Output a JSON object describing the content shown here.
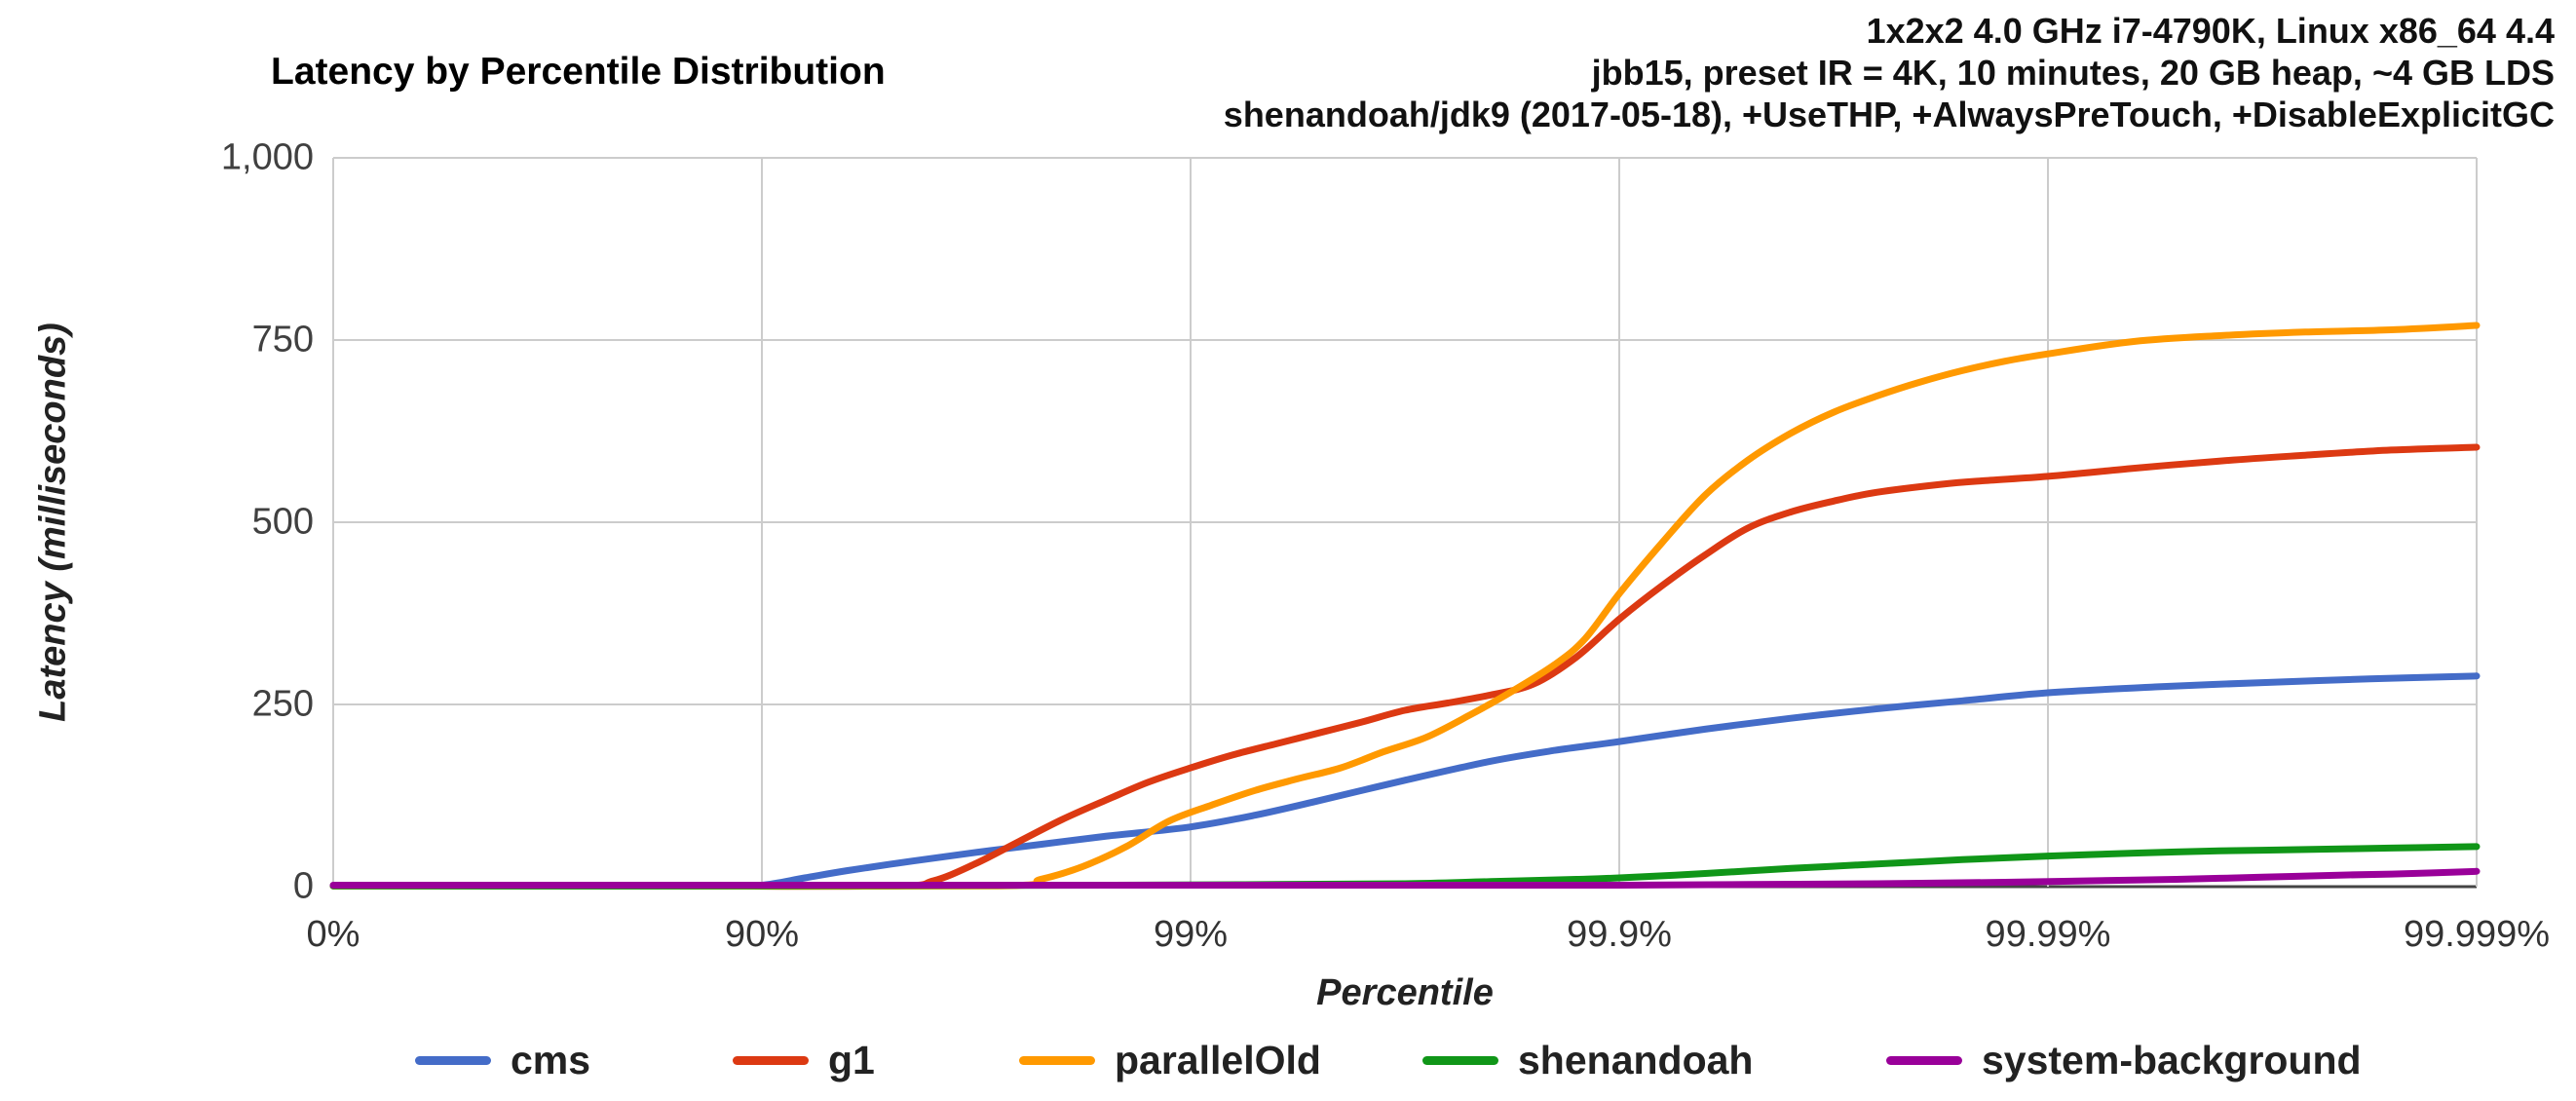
{
  "header": {
    "line1": "1x2x2 4.0 GHz i7-4790K, Linux x86_64 4.4",
    "line2": "jbb15, preset IR = 4K, 10 minutes, 20 GB heap, ~4 GB LDS",
    "line3": "shenandoah/jdk9 (2017-05-18), +UseTHP, +AlwaysPreTouch, +DisableExplicitGC"
  },
  "chart_data": {
    "type": "line",
    "title": "Latency by Percentile Distribution",
    "xlabel": "Percentile",
    "ylabel": "Latency (milliseconds)",
    "x_scale": "logarithmic percentile (equal spacing per decade of 1-p)",
    "x_ticks": [
      "0%",
      "90%",
      "99%",
      "99.9%",
      "99.99%",
      "99.999%"
    ],
    "y_ticks": [
      "0",
      "250",
      "500",
      "750",
      "1,000"
    ],
    "ylim": [
      0,
      1000
    ],
    "grid": true,
    "legend_position": "bottom",
    "colors": {
      "gridline": "#cccccc",
      "axis_baseline": "#444444",
      "background": "#ffffff"
    },
    "series": [
      {
        "name": "cms",
        "color": "#446CC8",
        "points_decade_ms": [
          [
            0,
            1
          ],
          [
            0.5,
            1
          ],
          [
            0.9,
            1
          ],
          [
            1.0,
            2
          ],
          [
            1.1,
            12
          ],
          [
            1.2,
            22
          ],
          [
            1.35,
            35
          ],
          [
            1.5,
            47
          ],
          [
            1.65,
            58
          ],
          [
            1.8,
            69
          ],
          [
            2.0,
            82
          ],
          [
            2.15,
            98
          ],
          [
            2.3,
            118
          ],
          [
            2.5,
            146
          ],
          [
            2.7,
            172
          ],
          [
            2.85,
            187
          ],
          [
            3.0,
            199
          ],
          [
            3.2,
            216
          ],
          [
            3.4,
            231
          ],
          [
            3.6,
            244
          ],
          [
            3.8,
            255
          ],
          [
            4.0,
            266
          ],
          [
            4.25,
            274
          ],
          [
            4.5,
            280
          ],
          [
            4.75,
            285
          ],
          [
            5.0,
            289
          ]
        ]
      },
      {
        "name": "g1",
        "color": "#DC3912",
        "points_decade_ms": [
          [
            0,
            1
          ],
          [
            0.75,
            1
          ],
          [
            1.3,
            1
          ],
          [
            1.4,
            8
          ],
          [
            1.5,
            32
          ],
          [
            1.6,
            62
          ],
          [
            1.7,
            92
          ],
          [
            1.8,
            118
          ],
          [
            1.9,
            143
          ],
          [
            2.0,
            163
          ],
          [
            2.1,
            181
          ],
          [
            2.2,
            196
          ],
          [
            2.3,
            211
          ],
          [
            2.4,
            226
          ],
          [
            2.5,
            242
          ],
          [
            2.6,
            252
          ],
          [
            2.7,
            263
          ],
          [
            2.8,
            278
          ],
          [
            2.9,
            315
          ],
          [
            3.0,
            367
          ],
          [
            3.1,
            413
          ],
          [
            3.2,
            455
          ],
          [
            3.3,
            492
          ],
          [
            3.4,
            514
          ],
          [
            3.5,
            529
          ],
          [
            3.6,
            541
          ],
          [
            3.75,
            552
          ],
          [
            3.85,
            557
          ],
          [
            4.0,
            563
          ],
          [
            4.2,
            574
          ],
          [
            4.4,
            584
          ],
          [
            4.6,
            592
          ],
          [
            4.8,
            599
          ],
          [
            5.0,
            603
          ]
        ]
      },
      {
        "name": "parallelOld",
        "color": "#FF9900",
        "points_decade_ms": [
          [
            0,
            1
          ],
          [
            0.75,
            1
          ],
          [
            1.55,
            1
          ],
          [
            1.65,
            10
          ],
          [
            1.75,
            28
          ],
          [
            1.85,
            55
          ],
          [
            1.95,
            90
          ],
          [
            2.05,
            112
          ],
          [
            2.15,
            132
          ],
          [
            2.25,
            148
          ],
          [
            2.35,
            163
          ],
          [
            2.45,
            185
          ],
          [
            2.55,
            205
          ],
          [
            2.65,
            235
          ],
          [
            2.75,
            268
          ],
          [
            2.85,
            305
          ],
          [
            2.92,
            340
          ],
          [
            3.0,
            402
          ],
          [
            3.1,
            472
          ],
          [
            3.2,
            537
          ],
          [
            3.3,
            585
          ],
          [
            3.4,
            622
          ],
          [
            3.5,
            651
          ],
          [
            3.6,
            673
          ],
          [
            3.7,
            692
          ],
          [
            3.8,
            708
          ],
          [
            3.9,
            721
          ],
          [
            4.0,
            731
          ],
          [
            4.2,
            748
          ],
          [
            4.4,
            756
          ],
          [
            4.6,
            761
          ],
          [
            4.8,
            764
          ],
          [
            5.0,
            770
          ]
        ]
      },
      {
        "name": "shenandoah",
        "color": "#109618",
        "points_decade_ms": [
          [
            0,
            1
          ],
          [
            1.0,
            1
          ],
          [
            1.8,
            2
          ],
          [
            2.2,
            3
          ],
          [
            2.5,
            4
          ],
          [
            2.7,
            7
          ],
          [
            2.9,
            10
          ],
          [
            3.0,
            12
          ],
          [
            3.2,
            18
          ],
          [
            3.4,
            25
          ],
          [
            3.6,
            31
          ],
          [
            3.8,
            37
          ],
          [
            4.0,
            42
          ],
          [
            4.2,
            46
          ],
          [
            4.4,
            49
          ],
          [
            4.6,
            51
          ],
          [
            4.8,
            53
          ],
          [
            5.0,
            55
          ]
        ]
      },
      {
        "name": "system-background",
        "color": "#990099",
        "points_decade_ms": [
          [
            0,
            2
          ],
          [
            1.5,
            2
          ],
          [
            2.5,
            2
          ],
          [
            3.0,
            2
          ],
          [
            3.3,
            3
          ],
          [
            3.6,
            4
          ],
          [
            3.9,
            6
          ],
          [
            4.1,
            8
          ],
          [
            4.3,
            10
          ],
          [
            4.5,
            13
          ],
          [
            4.7,
            16
          ],
          [
            4.85,
            18
          ],
          [
            5.0,
            21
          ]
        ]
      }
    ]
  }
}
